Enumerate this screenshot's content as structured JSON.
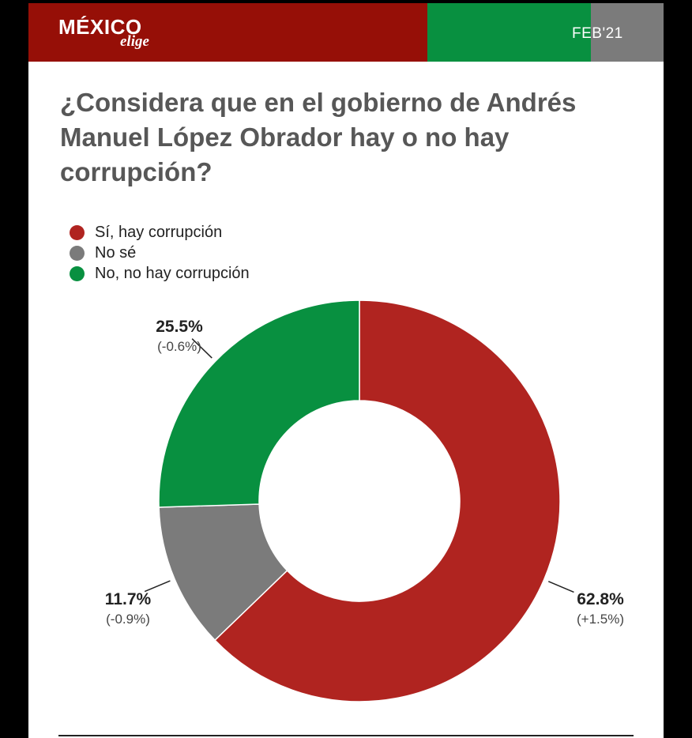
{
  "brand": {
    "name": "MÉXICO",
    "tagline": "elige",
    "date": "FEB'21",
    "colors": {
      "red": "#960f07",
      "green": "#089040",
      "gray": "#7b7b7b"
    }
  },
  "legend": [
    {
      "label": "Sí, hay corrupción",
      "color": "#b02420"
    },
    {
      "label": "No sé",
      "color": "#7b7b7b"
    },
    {
      "label": "No, no hay corrupción",
      "color": "#089040"
    }
  ],
  "chart_data": {
    "type": "pie",
    "donut": true,
    "title": "¿Considera que en el gobierno de Andrés Manuel López Obrador hay o no hay corrupción?",
    "categories": [
      "Sí, hay corrupción",
      "No sé",
      "No, no hay corrupción"
    ],
    "values": [
      62.8,
      11.7,
      25.5
    ],
    "value_labels": [
      "62.8%",
      "11.7%",
      "25.5%"
    ],
    "change_labels": [
      "(+1.5%)",
      "(-0.9%)",
      "(-0.6%)"
    ],
    "colors": [
      "#b02420",
      "#7b7b7b",
      "#089040"
    ],
    "legend_position": "top-left",
    "start": "12 o'clock, clockwise"
  }
}
